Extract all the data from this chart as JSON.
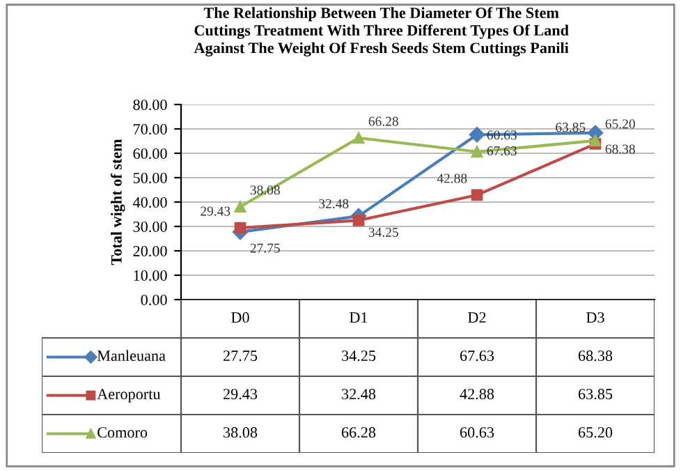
{
  "chart_data": {
    "type": "line",
    "title": "The Relationship Between The Diameter Of The Stem\nCuttings Treatment With Three Different Types Of Land\nAgainst The Weight Of Fresh Seeds Stem Cuttings Panili",
    "ylabel": "Total wight of stem",
    "categories": [
      "D0",
      "D1",
      "D2",
      "D3"
    ],
    "series": [
      {
        "name": "Manleuana",
        "color": "#4a7ebb",
        "marker": "diamond",
        "values": [
          27.75,
          34.25,
          67.63,
          68.38
        ],
        "value_labels": [
          "27.75",
          "34.25",
          "67.63",
          "68.38"
        ]
      },
      {
        "name": "Aeroportu",
        "color": "#be4b48",
        "marker": "square",
        "values": [
          29.43,
          32.48,
          42.88,
          63.85
        ],
        "value_labels": [
          "29.43",
          "32.48",
          "42.88",
          "63.85"
        ]
      },
      {
        "name": "Comoro",
        "color": "#98b954",
        "marker": "triangle",
        "values": [
          38.08,
          66.28,
          60.63,
          65.2
        ],
        "value_labels": [
          "38.08",
          "66.28",
          "60.63",
          "65.20"
        ]
      }
    ],
    "legend": "bottom left",
    "ylim": [
      0,
      80
    ],
    "yticks": [
      {
        "value": 0,
        "label": "0.00"
      },
      {
        "value": 10,
        "label": "10.00"
      },
      {
        "value": 20,
        "label": "20.00"
      },
      {
        "value": 30,
        "label": "30.00"
      },
      {
        "value": 40,
        "label": "40.00"
      },
      {
        "value": 50,
        "label": "50.00"
      },
      {
        "value": 60,
        "label": "60.00"
      },
      {
        "value": 70,
        "label": "70.00"
      },
      {
        "value": 80,
        "label": "80.00"
      }
    ],
    "grid": "y"
  }
}
